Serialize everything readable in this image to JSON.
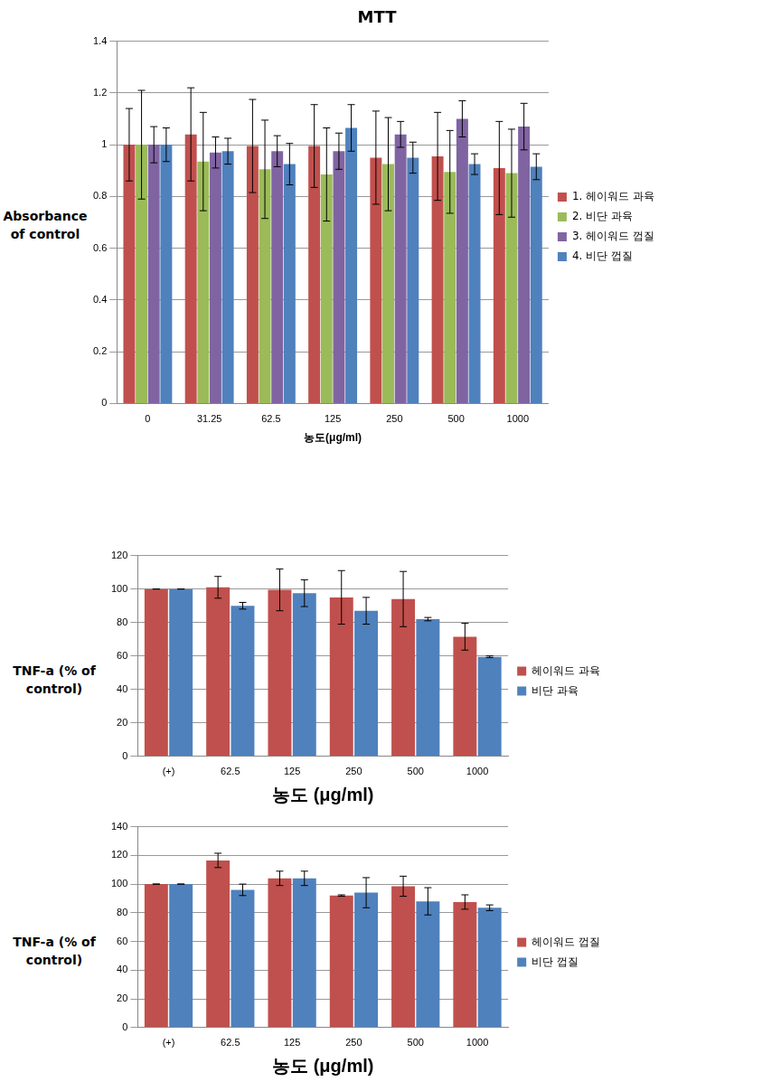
{
  "chart_data": [
    {
      "type": "bar",
      "title": "MTT",
      "y_label": "Absorbance of control",
      "x_label": "농도(μg/ml)",
      "categories": [
        "0",
        "31.25",
        "62.5",
        "125",
        "250",
        "500",
        "1000"
      ],
      "series": [
        {
          "name": "1. 헤이워드 과육",
          "color": "#c0504d",
          "values": [
            1.0,
            1.04,
            0.995,
            0.995,
            0.95,
            0.955,
            0.91
          ],
          "errors": [
            0.14,
            0.18,
            0.18,
            0.16,
            0.18,
            0.17,
            0.18
          ]
        },
        {
          "name": "2. 비단 과육",
          "color": "#9bbb59",
          "values": [
            1.0,
            0.935,
            0.905,
            0.885,
            0.925,
            0.895,
            0.89
          ],
          "errors": [
            0.21,
            0.19,
            0.19,
            0.18,
            0.18,
            0.16,
            0.17
          ]
        },
        {
          "name": "3. 헤이워드 껍질",
          "color": "#8064a2",
          "values": [
            1.0,
            0.97,
            0.975,
            0.975,
            1.04,
            1.1,
            1.07
          ],
          "errors": [
            0.07,
            0.06,
            0.06,
            0.07,
            0.05,
            0.07,
            0.09
          ]
        },
        {
          "name": "4. 비단 껍질",
          "color": "#4f81bd",
          "values": [
            1.0,
            0.975,
            0.925,
            1.065,
            0.95,
            0.925,
            0.915
          ],
          "errors": [
            0.065,
            0.05,
            0.08,
            0.09,
            0.06,
            0.04,
            0.05
          ]
        }
      ],
      "ylim": [
        0,
        1.4
      ],
      "yticks": [
        0,
        0.2,
        0.4,
        0.6,
        0.8,
        1,
        1.2,
        1.4
      ],
      "grid": true,
      "legend": "right"
    },
    {
      "type": "bar",
      "y_label": "TNF-a (% of control)",
      "x_label": "농도 (μg/ml)",
      "categories": [
        "(+)",
        "62.5",
        "125",
        "250",
        "500",
        "1000"
      ],
      "series": [
        {
          "name": "헤이워드 과육",
          "color": "#c0504d",
          "values": [
            100,
            101,
            99.5,
            95,
            94,
            71.5
          ],
          "errors": [
            0,
            6.5,
            12.5,
            16,
            16.5,
            8
          ]
        },
        {
          "name": "비단 과육",
          "color": "#4f81bd",
          "values": [
            100,
            90,
            97.5,
            87,
            82,
            59.5
          ],
          "errors": [
            0,
            2,
            8,
            8,
            1,
            0.5
          ]
        }
      ],
      "ylim": [
        0,
        120
      ],
      "yticks": [
        0,
        20,
        40,
        60,
        80,
        100,
        120
      ],
      "grid": true,
      "legend": "right"
    },
    {
      "type": "bar",
      "y_label": "TNF-a (% of control)",
      "x_label": "농도 (μg/ml)",
      "categories": [
        "(+)",
        "62.5",
        "125",
        "250",
        "500",
        "1000"
      ],
      "series": [
        {
          "name": "헤이워드 껍질",
          "color": "#c0504d",
          "values": [
            100,
            116.5,
            104,
            92,
            98.5,
            87.5
          ],
          "errors": [
            0,
            5,
            5,
            0.5,
            7,
            5
          ]
        },
        {
          "name": "비단 껍질",
          "color": "#4f81bd",
          "values": [
            100,
            96,
            104,
            94,
            88,
            83.5
          ],
          "errors": [
            0,
            4,
            5,
            10.5,
            9.5,
            2
          ]
        }
      ],
      "ylim": [
        0,
        140
      ],
      "yticks": [
        0,
        20,
        40,
        60,
        80,
        100,
        120,
        140
      ],
      "grid": true,
      "legend": "right"
    }
  ]
}
